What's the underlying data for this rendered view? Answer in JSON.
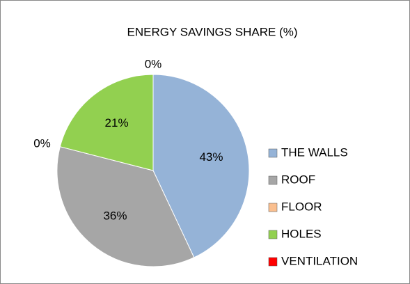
{
  "chart_data": {
    "type": "pie",
    "title": "ENERGY SAVINGS SHARE (%)",
    "categories": [
      "THE WALLS",
      "ROOF",
      "FLOOR",
      "HOLES",
      "VENTILATION"
    ],
    "values": [
      43,
      36,
      0,
      21,
      0
    ],
    "value_labels": [
      "43%",
      "36%",
      "0%",
      "21%",
      "0%"
    ],
    "colors": [
      "#95b3d7",
      "#a6a6a6",
      "#fabf8f",
      "#92d050",
      "#ff0000"
    ],
    "legend": "right"
  }
}
